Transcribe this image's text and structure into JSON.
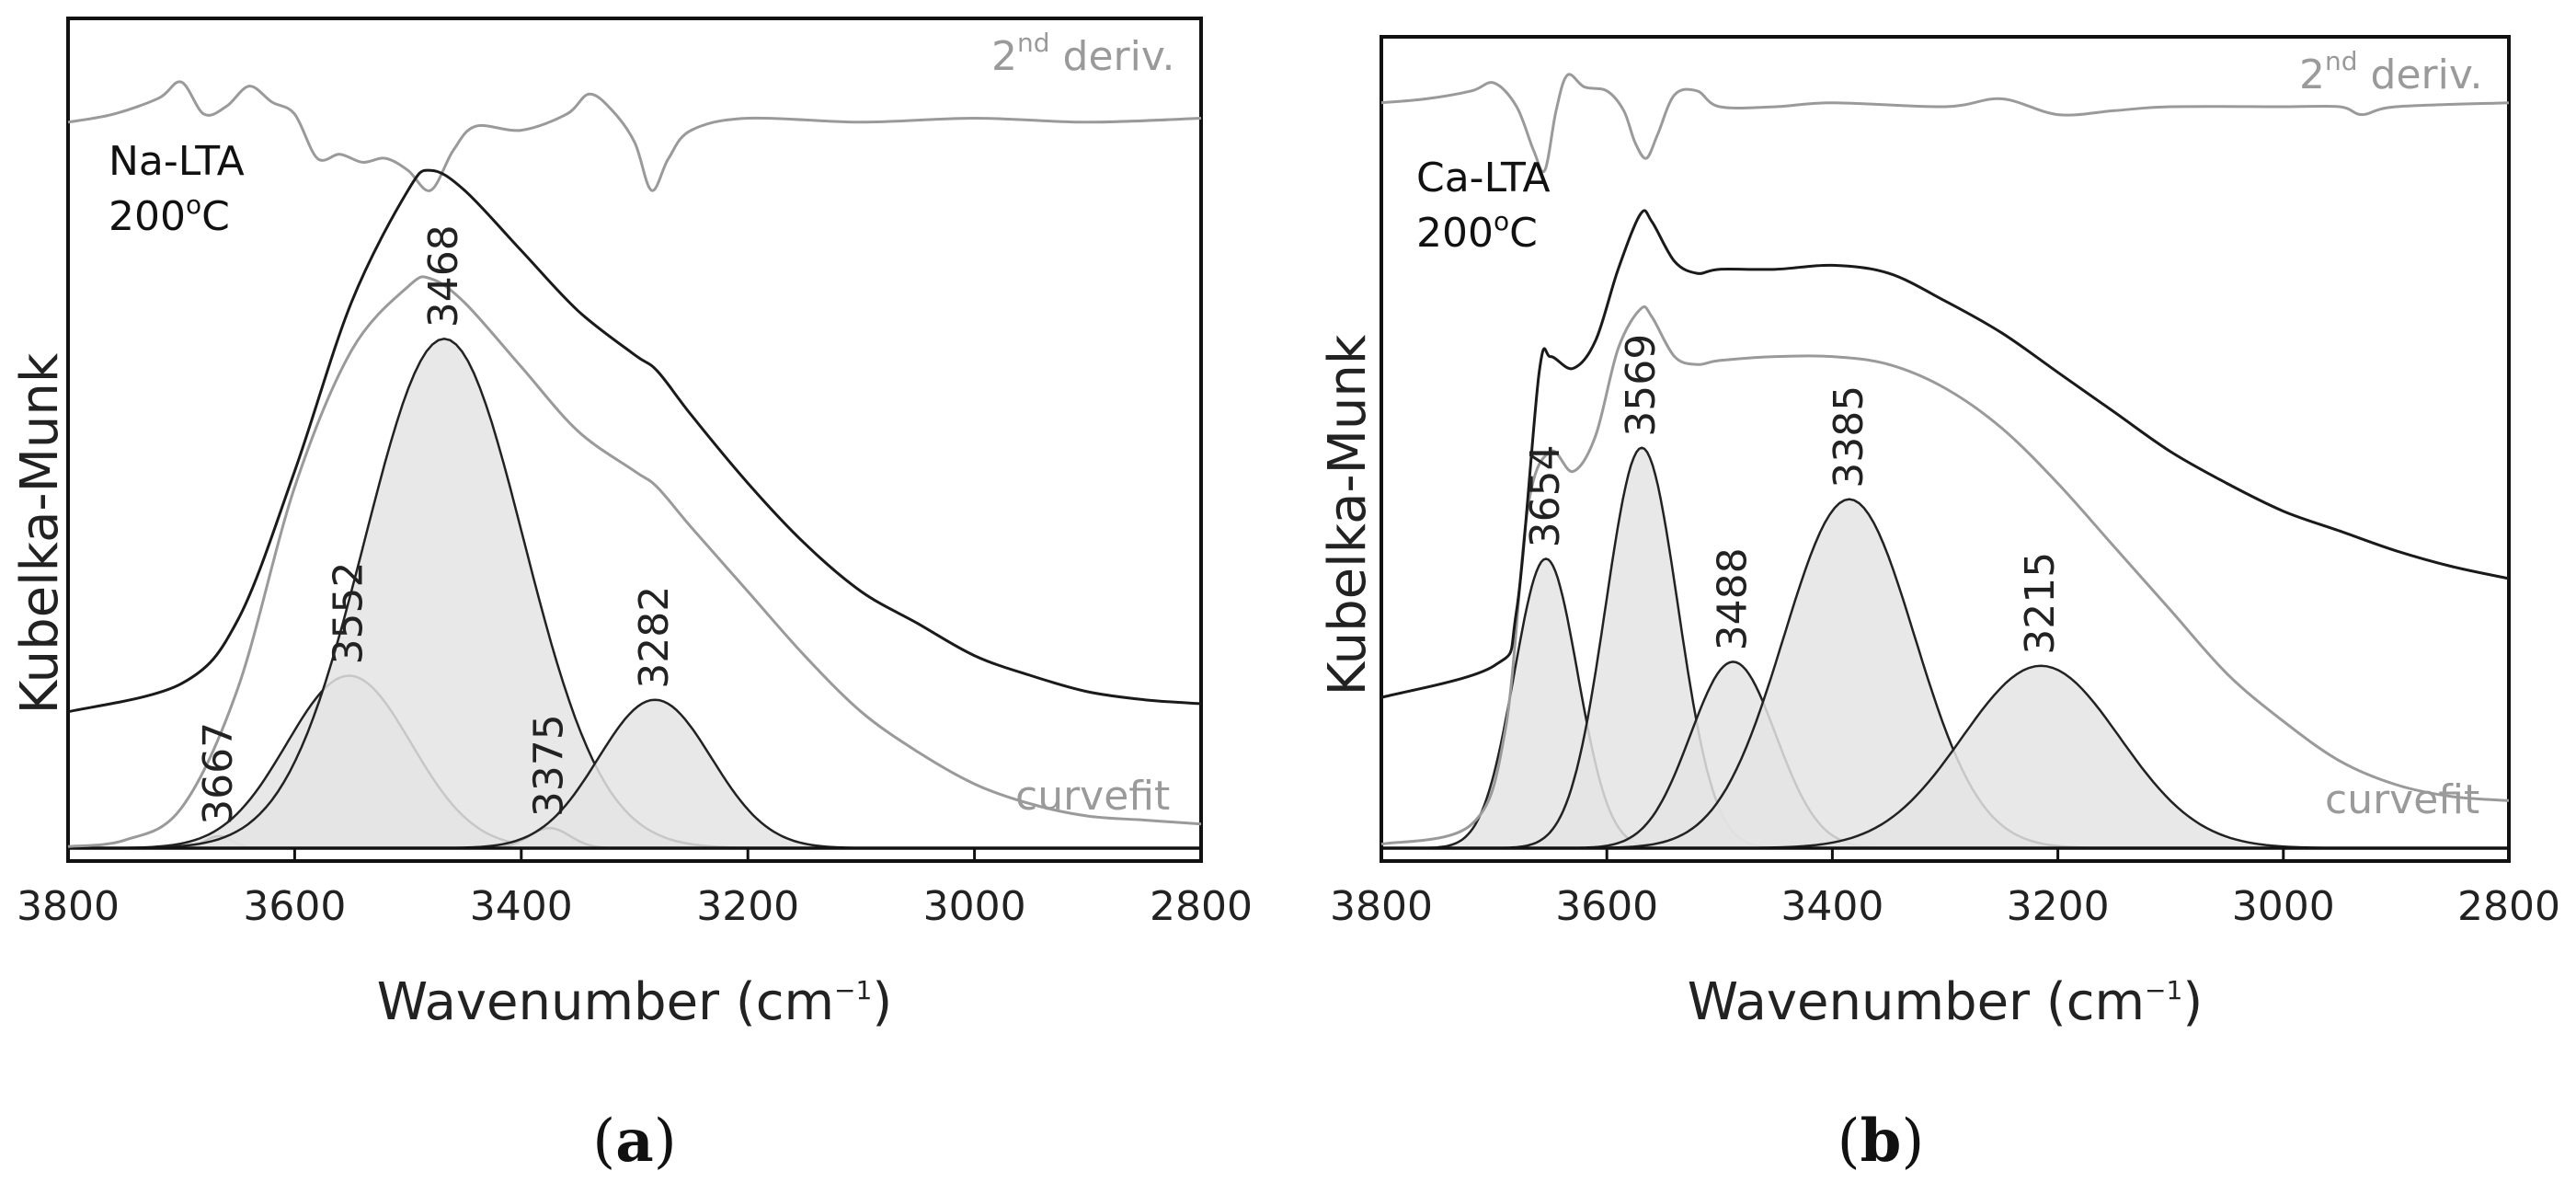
{
  "chart_data": [
    {
      "type": "line",
      "panel": "a",
      "caption_letter": "a",
      "sample": "Na-LTA",
      "temperature": "200",
      "temperature_unit": "oC",
      "ylabel": "Kubelka-Munk",
      "xlabel_main": "Wavenumber (cm",
      "xlabel_sup": "−1",
      "xlabel_close": ")",
      "xlim": [
        3800,
        2800
      ],
      "ylim": [
        0,
        1
      ],
      "x_ticks": [
        "3800",
        "3600",
        "3400",
        "3200",
        "3000",
        "2800"
      ],
      "deriv_label_pre": "2",
      "deriv_label_sup": "nd",
      "deriv_label_post": " deriv.",
      "curvefit_label": "curvefit",
      "peaks": [
        {
          "label": "3667",
          "center": 3667,
          "height": 0.015,
          "width": 12
        },
        {
          "label": "3552",
          "center": 3552,
          "height": 0.215,
          "width": 55
        },
        {
          "label": "3468",
          "center": 3468,
          "height": 0.635,
          "width": 70
        },
        {
          "label": "3375",
          "center": 3375,
          "height": 0.025,
          "width": 18
        },
        {
          "label": "3282",
          "center": 3282,
          "height": 0.185,
          "width": 50
        }
      ],
      "spectrum_points": [
        [
          3800,
          0.17
        ],
        [
          3700,
          0.205
        ],
        [
          3650,
          0.285
        ],
        [
          3600,
          0.47
        ],
        [
          3550,
          0.68
        ],
        [
          3500,
          0.82
        ],
        [
          3480,
          0.845
        ],
        [
          3450,
          0.82
        ],
        [
          3400,
          0.745
        ],
        [
          3350,
          0.67
        ],
        [
          3300,
          0.615
        ],
        [
          3280,
          0.595
        ],
        [
          3250,
          0.54
        ],
        [
          3200,
          0.455
        ],
        [
          3150,
          0.38
        ],
        [
          3100,
          0.32
        ],
        [
          3050,
          0.28
        ],
        [
          3000,
          0.24
        ],
        [
          2950,
          0.215
        ],
        [
          2900,
          0.195
        ],
        [
          2850,
          0.185
        ],
        [
          2800,
          0.18
        ]
      ],
      "curvefit_points": [
        [
          3800,
          0.002
        ],
        [
          3750,
          0.01
        ],
        [
          3700,
          0.05
        ],
        [
          3650,
          0.2
        ],
        [
          3600,
          0.45
        ],
        [
          3550,
          0.62
        ],
        [
          3500,
          0.7
        ],
        [
          3480,
          0.71
        ],
        [
          3450,
          0.68
        ],
        [
          3400,
          0.6
        ],
        [
          3350,
          0.52
        ],
        [
          3300,
          0.47
        ],
        [
          3280,
          0.45
        ],
        [
          3250,
          0.4
        ],
        [
          3200,
          0.32
        ],
        [
          3150,
          0.24
        ],
        [
          3100,
          0.17
        ],
        [
          3050,
          0.12
        ],
        [
          3000,
          0.08
        ],
        [
          2950,
          0.055
        ],
        [
          2900,
          0.04
        ],
        [
          2850,
          0.035
        ],
        [
          2800,
          0.03
        ]
      ],
      "deriv_points": [
        [
          3800,
          0.905
        ],
        [
          3760,
          0.915
        ],
        [
          3720,
          0.935
        ],
        [
          3700,
          0.955
        ],
        [
          3680,
          0.915
        ],
        [
          3660,
          0.925
        ],
        [
          3640,
          0.95
        ],
        [
          3620,
          0.93
        ],
        [
          3600,
          0.915
        ],
        [
          3580,
          0.86
        ],
        [
          3560,
          0.865
        ],
        [
          3540,
          0.855
        ],
        [
          3520,
          0.86
        ],
        [
          3500,
          0.845
        ],
        [
          3480,
          0.82
        ],
        [
          3460,
          0.87
        ],
        [
          3440,
          0.9
        ],
        [
          3400,
          0.895
        ],
        [
          3360,
          0.915
        ],
        [
          3340,
          0.94
        ],
        [
          3320,
          0.92
        ],
        [
          3300,
          0.88
        ],
        [
          3285,
          0.82
        ],
        [
          3270,
          0.86
        ],
        [
          3250,
          0.895
        ],
        [
          3200,
          0.91
        ],
        [
          3100,
          0.905
        ],
        [
          3000,
          0.91
        ],
        [
          2900,
          0.905
        ],
        [
          2800,
          0.91
        ]
      ]
    },
    {
      "type": "line",
      "panel": "b",
      "caption_letter": "b",
      "sample": "Ca-LTA",
      "temperature": "200",
      "temperature_unit": "oC",
      "ylabel": "Kubelka-Munk",
      "xlabel_main": "Wavenumber (cm",
      "xlabel_sup": "−1",
      "xlabel_close": ")",
      "xlim": [
        3800,
        2800
      ],
      "ylim": [
        0,
        1
      ],
      "x_ticks": [
        "3800",
        "3600",
        "3400",
        "3200",
        "3000",
        "2800"
      ],
      "deriv_label_pre": "2",
      "deriv_label_sup": "nd",
      "deriv_label_post": " deriv.",
      "curvefit_label": "curvefit",
      "peaks": [
        {
          "label": "3654",
          "center": 3654,
          "height": 0.365,
          "width": 28
        },
        {
          "label": "3569",
          "center": 3569,
          "height": 0.505,
          "width": 32
        },
        {
          "label": "3488",
          "center": 3488,
          "height": 0.235,
          "width": 38
        },
        {
          "label": "3385",
          "center": 3385,
          "height": 0.44,
          "width": 58
        },
        {
          "label": "3215",
          "center": 3215,
          "height": 0.23,
          "width": 70
        }
      ],
      "spectrum_points": [
        [
          3800,
          0.19
        ],
        [
          3700,
          0.23
        ],
        [
          3680,
          0.3
        ],
        [
          3660,
          0.6
        ],
        [
          3650,
          0.62
        ],
        [
          3630,
          0.605
        ],
        [
          3610,
          0.64
        ],
        [
          3590,
          0.73
        ],
        [
          3570,
          0.8
        ],
        [
          3560,
          0.79
        ],
        [
          3540,
          0.74
        ],
        [
          3520,
          0.725
        ],
        [
          3500,
          0.73
        ],
        [
          3450,
          0.73
        ],
        [
          3400,
          0.735
        ],
        [
          3350,
          0.725
        ],
        [
          3300,
          0.69
        ],
        [
          3250,
          0.65
        ],
        [
          3200,
          0.6
        ],
        [
          3150,
          0.55
        ],
        [
          3100,
          0.5
        ],
        [
          3050,
          0.46
        ],
        [
          3000,
          0.425
        ],
        [
          2950,
          0.4
        ],
        [
          2900,
          0.375
        ],
        [
          2850,
          0.355
        ],
        [
          2800,
          0.34
        ]
      ],
      "curvefit_points": [
        [
          3800,
          0.005
        ],
        [
          3720,
          0.03
        ],
        [
          3690,
          0.15
        ],
        [
          3670,
          0.43
        ],
        [
          3650,
          0.5
        ],
        [
          3630,
          0.475
        ],
        [
          3610,
          0.52
        ],
        [
          3590,
          0.63
        ],
        [
          3570,
          0.68
        ],
        [
          3560,
          0.67
        ],
        [
          3540,
          0.62
        ],
        [
          3520,
          0.61
        ],
        [
          3500,
          0.615
        ],
        [
          3450,
          0.62
        ],
        [
          3400,
          0.62
        ],
        [
          3350,
          0.61
        ],
        [
          3300,
          0.58
        ],
        [
          3250,
          0.53
        ],
        [
          3200,
          0.46
        ],
        [
          3150,
          0.38
        ],
        [
          3100,
          0.3
        ],
        [
          3050,
          0.22
        ],
        [
          3000,
          0.16
        ],
        [
          2950,
          0.11
        ],
        [
          2900,
          0.08
        ],
        [
          2850,
          0.065
        ],
        [
          2800,
          0.06
        ]
      ],
      "deriv_points": [
        [
          3800,
          0.94
        ],
        [
          3760,
          0.945
        ],
        [
          3720,
          0.955
        ],
        [
          3700,
          0.965
        ],
        [
          3680,
          0.935
        ],
        [
          3665,
          0.88
        ],
        [
          3655,
          0.855
        ],
        [
          3645,
          0.93
        ],
        [
          3635,
          0.975
        ],
        [
          3620,
          0.96
        ],
        [
          3600,
          0.955
        ],
        [
          3585,
          0.93
        ],
        [
          3575,
          0.89
        ],
        [
          3565,
          0.87
        ],
        [
          3555,
          0.9
        ],
        [
          3540,
          0.95
        ],
        [
          3520,
          0.955
        ],
        [
          3500,
          0.935
        ],
        [
          3450,
          0.935
        ],
        [
          3400,
          0.94
        ],
        [
          3300,
          0.935
        ],
        [
          3250,
          0.945
        ],
        [
          3200,
          0.925
        ],
        [
          3150,
          0.93
        ],
        [
          3100,
          0.935
        ],
        [
          3000,
          0.935
        ],
        [
          2950,
          0.935
        ],
        [
          2930,
          0.925
        ],
        [
          2900,
          0.935
        ],
        [
          2800,
          0.94
        ]
      ]
    }
  ]
}
